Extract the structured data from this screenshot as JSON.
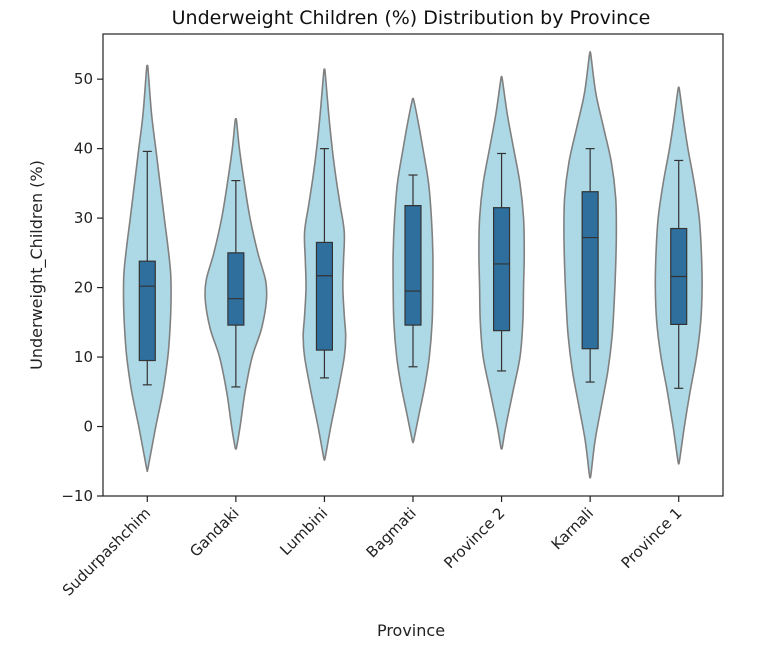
{
  "chart_data": {
    "type": "violin",
    "title": "Underweight Children (%) Distribution by Province",
    "xlabel": "Province",
    "ylabel": "Underweight_Children (%)",
    "ylim": [
      -10,
      56.5
    ],
    "yticks": [
      -10,
      0,
      10,
      20,
      30,
      40,
      50
    ],
    "ytick_labels": [
      "−10",
      "0",
      "10",
      "20",
      "30",
      "40",
      "50"
    ],
    "grid": false,
    "colors": {
      "violin_fill": "#add8e6",
      "violin_edge": "#808080",
      "box_fill": "#2e6f9e",
      "box_edge": "#333333"
    },
    "categories": [
      "Sudurpashchim",
      "Gandaki",
      "Lumbini",
      "Bagmati",
      "Province 2",
      "Karnali",
      "Province 1"
    ],
    "series": [
      {
        "category": "Sudurpashchim",
        "violin_min": -6,
        "violin_max": 51.5,
        "whisker_low": 6,
        "q1": 9.5,
        "median": 20.2,
        "q3": 23.8,
        "whisker_high": 39.6,
        "width_profile": [
          [
            -6,
            0.02
          ],
          [
            0,
            0.24
          ],
          [
            5,
            0.44
          ],
          [
            10,
            0.58
          ],
          [
            14,
            0.64
          ],
          [
            18,
            0.67
          ],
          [
            22,
            0.66
          ],
          [
            26,
            0.58
          ],
          [
            30,
            0.48
          ],
          [
            35,
            0.36
          ],
          [
            40,
            0.24
          ],
          [
            45,
            0.12
          ],
          [
            51.5,
            0.02
          ]
        ]
      },
      {
        "category": "Gandaki",
        "violin_min": -3,
        "violin_max": 44,
        "whisker_low": 5.7,
        "q1": 14.6,
        "median": 18.4,
        "q3": 25,
        "whisker_high": 35.4,
        "width_profile": [
          [
            -3,
            0.02
          ],
          [
            0,
            0.12
          ],
          [
            5,
            0.26
          ],
          [
            10,
            0.46
          ],
          [
            14,
            0.72
          ],
          [
            18,
            0.86
          ],
          [
            21,
            0.84
          ],
          [
            25,
            0.62
          ],
          [
            30,
            0.4
          ],
          [
            35,
            0.24
          ],
          [
            40,
            0.1
          ],
          [
            44,
            0.02
          ]
        ]
      },
      {
        "category": "Lumbini",
        "violin_min": -4.5,
        "violin_max": 51,
        "whisker_low": 7,
        "q1": 11,
        "median": 21.7,
        "q3": 26.5,
        "whisker_high": 40,
        "width_profile": [
          [
            -4.5,
            0.02
          ],
          [
            0,
            0.18
          ],
          [
            5,
            0.38
          ],
          [
            10,
            0.56
          ],
          [
            13,
            0.6
          ],
          [
            16,
            0.56
          ],
          [
            20,
            0.52
          ],
          [
            24,
            0.54
          ],
          [
            28,
            0.56
          ],
          [
            32,
            0.44
          ],
          [
            36,
            0.32
          ],
          [
            40,
            0.22
          ],
          [
            45,
            0.12
          ],
          [
            51,
            0.02
          ]
        ]
      },
      {
        "category": "Bagmati",
        "violin_min": -2,
        "violin_max": 47,
        "whisker_low": 8.6,
        "q1": 14.6,
        "median": 19.5,
        "q3": 31.8,
        "whisker_high": 36.2,
        "width_profile": [
          [
            -2,
            0.02
          ],
          [
            2,
            0.18
          ],
          [
            6,
            0.34
          ],
          [
            10,
            0.46
          ],
          [
            15,
            0.54
          ],
          [
            20,
            0.56
          ],
          [
            25,
            0.56
          ],
          [
            30,
            0.52
          ],
          [
            35,
            0.44
          ],
          [
            40,
            0.28
          ],
          [
            44,
            0.14
          ],
          [
            47,
            0.02
          ]
        ]
      },
      {
        "category": "Province 2",
        "violin_min": -3,
        "violin_max": 50,
        "whisker_low": 8,
        "q1": 13.8,
        "median": 23.4,
        "q3": 31.5,
        "whisker_high": 39.3,
        "width_profile": [
          [
            -3,
            0.02
          ],
          [
            0,
            0.12
          ],
          [
            5,
            0.32
          ],
          [
            10,
            0.52
          ],
          [
            15,
            0.6
          ],
          [
            20,
            0.62
          ],
          [
            25,
            0.64
          ],
          [
            30,
            0.62
          ],
          [
            35,
            0.52
          ],
          [
            40,
            0.34
          ],
          [
            45,
            0.16
          ],
          [
            50,
            0.02
          ]
        ]
      },
      {
        "category": "Karnali",
        "violin_min": -7,
        "violin_max": 53.5,
        "whisker_low": 6.4,
        "q1": 11.2,
        "median": 27.2,
        "q3": 33.8,
        "whisker_high": 40,
        "width_profile": [
          [
            -7,
            0.02
          ],
          [
            -2,
            0.14
          ],
          [
            3,
            0.32
          ],
          [
            8,
            0.5
          ],
          [
            13,
            0.62
          ],
          [
            18,
            0.68
          ],
          [
            23,
            0.72
          ],
          [
            28,
            0.74
          ],
          [
            33,
            0.72
          ],
          [
            38,
            0.6
          ],
          [
            43,
            0.38
          ],
          [
            48,
            0.16
          ],
          [
            53.5,
            0.02
          ]
        ]
      },
      {
        "category": "Province 1",
        "violin_min": -5,
        "violin_max": 48.5,
        "whisker_low": 5.5,
        "q1": 14.7,
        "median": 21.6,
        "q3": 28.5,
        "whisker_high": 38.3,
        "width_profile": [
          [
            -5,
            0.02
          ],
          [
            0,
            0.16
          ],
          [
            5,
            0.32
          ],
          [
            10,
            0.5
          ],
          [
            15,
            0.62
          ],
          [
            20,
            0.66
          ],
          [
            25,
            0.64
          ],
          [
            30,
            0.58
          ],
          [
            35,
            0.44
          ],
          [
            40,
            0.26
          ],
          [
            44,
            0.14
          ],
          [
            48.5,
            0.02
          ]
        ]
      }
    ]
  }
}
